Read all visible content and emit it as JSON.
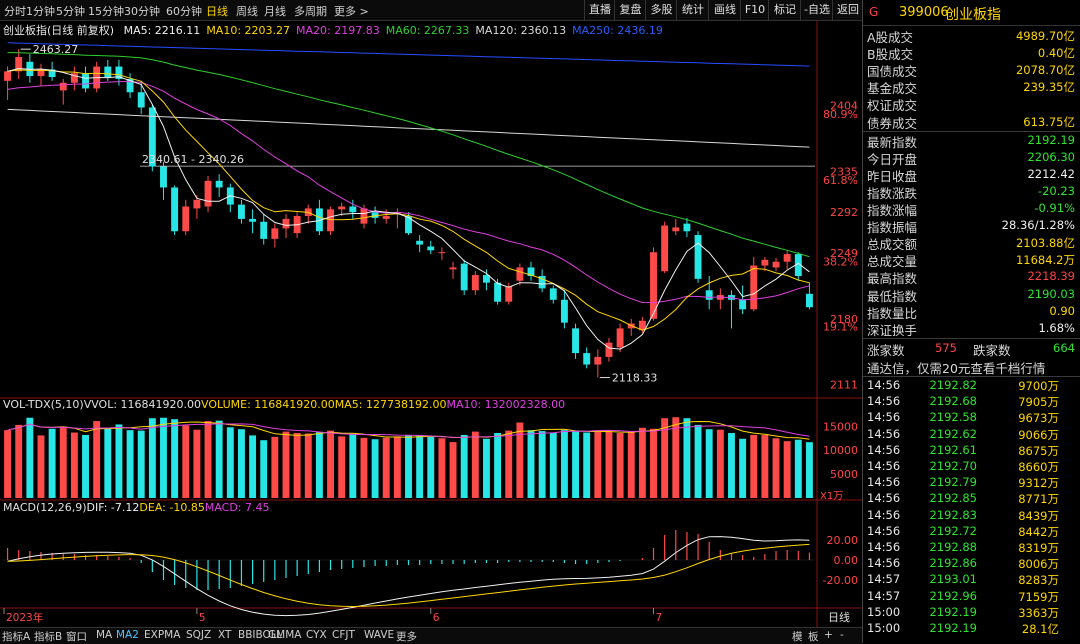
{
  "topbar": {
    "periods": [
      "分时",
      "1分钟",
      "5分钟",
      "15分钟",
      "30分钟",
      "60分钟",
      "日线",
      "周线",
      "月线",
      "多周期",
      "更多 >"
    ],
    "active": "日线",
    "right_buttons": [
      "直播",
      "复盘",
      "多股",
      "统计",
      "画线",
      "F10",
      "标记",
      "-自选",
      "返回"
    ]
  },
  "main_chart": {
    "title": "创业板指(日线 前复权)",
    "legend": [
      {
        "text": "MA5: 2216.11",
        "color": "#f0f0f0"
      },
      {
        "text": "MA10: 2203.27",
        "color": "#ffd700"
      },
      {
        "text": "MA20: 2197.83",
        "color": "#e040e0"
      },
      {
        "text": "MA60: 2267.33",
        "color": "#2ed02e"
      },
      {
        "text": "MA120: 2360.13",
        "color": "#d8d8d8"
      },
      {
        "text": "MA250: 2436.19",
        "color": "#2a5cff"
      }
    ],
    "annotations": {
      "high": "2463.27",
      "mid": "2340.61 - 2340.26",
      "low": "2118.33"
    },
    "price_ticks": [
      "2404",
      "2335",
      "2292",
      "2249",
      "2180",
      "2111"
    ],
    "pct_ticks": [
      "80.9%",
      "61.8%",
      "38.2%",
      "19.1%"
    ]
  },
  "volume_panel": {
    "legend": [
      {
        "text": "VOL-TDX(5,10)",
        "color": "#e0e0e0"
      },
      {
        "text": "VVOL: 116841920.00",
        "color": "#e0e0e0"
      },
      {
        "text": "VOLUME: 116841920.00",
        "color": "#ffd700"
      },
      {
        "text": "MA5: 127738192.00",
        "color": "#ffd700"
      },
      {
        "text": "MA10: 132002328.00",
        "color": "#e040e0"
      }
    ],
    "ticks": [
      "15000",
      "10000",
      "5000"
    ],
    "unit": "X1万"
  },
  "macd_panel": {
    "legend": [
      {
        "text": "MACD(12,26,9)",
        "color": "#e0e0e0"
      },
      {
        "text": "DIF: -7.12",
        "color": "#f0f0f0"
      },
      {
        "text": "DEA: -10.85",
        "color": "#ffd700"
      },
      {
        "text": "MACD: 7.45",
        "color": "#e040e0"
      }
    ],
    "ticks": [
      "20.00",
      "0.00",
      "-20.00"
    ]
  },
  "date_axis": {
    "labels": [
      "2023年",
      "5",
      "6",
      "7"
    ],
    "period_label": "日线"
  },
  "bottombar": {
    "tabs": [
      "指标A",
      "指标B",
      "窗口",
      "MA",
      "MA2",
      "EXPMA",
      "SQJZ",
      "XT",
      "BBIBOLL",
      "GMMA",
      "CYX",
      "CFJT",
      "WAVE",
      "更多"
    ],
    "active": "MA2",
    "right": [
      "模",
      "板",
      "+",
      "-"
    ]
  },
  "quote_panel": {
    "flag": "G",
    "code": "399006",
    "name": "创业板指",
    "rows_top": [
      {
        "label": "A股成交",
        "value": "4989.70亿",
        "color": "yellow"
      },
      {
        "label": "B股成交",
        "value": "0.40亿",
        "color": "yellow"
      },
      {
        "label": "国债成交",
        "value": "2078.70亿",
        "color": "yellow"
      },
      {
        "label": "基金成交",
        "value": "239.35亿",
        "color": "yellow"
      },
      {
        "label": "权证成交",
        "value": "",
        "color": "yellow"
      },
      {
        "label": "债券成交",
        "value": "613.75亿",
        "color": "yellow"
      }
    ],
    "rows_mid": [
      {
        "label": "最新指数",
        "value": "2192.19",
        "color": "green"
      },
      {
        "label": "今日开盘",
        "value": "2206.30",
        "color": "green"
      },
      {
        "label": "昨日收盘",
        "value": "2212.42",
        "color": "white"
      },
      {
        "label": "指数涨跌",
        "value": "-20.23",
        "color": "green"
      },
      {
        "label": "指数涨幅",
        "value": "-0.91%",
        "color": "green"
      },
      {
        "label": "指数振幅",
        "value": "28.36/1.28%",
        "color": "white"
      },
      {
        "label": "总成交额",
        "value": "2103.88亿",
        "color": "yellow"
      },
      {
        "label": "总成交量",
        "value": "11684.2万",
        "color": "yellow"
      },
      {
        "label": "最高指数",
        "value": "2218.39",
        "color": "red"
      },
      {
        "label": "最低指数",
        "value": "2190.03",
        "color": "green"
      },
      {
        "label": "指数量比",
        "value": "0.90",
        "color": "yellow"
      },
      {
        "label": "深证换手",
        "value": "1.68%",
        "color": "white"
      }
    ],
    "advance_label": "涨家数",
    "advance_value": "575",
    "decline_label": "跌家数",
    "decline_value": "664",
    "promo": "通达信，仅需20元查看千档行情",
    "ticks": [
      {
        "time": "14:56",
        "price": "2192.82",
        "vol": "9700万"
      },
      {
        "time": "14:56",
        "price": "2192.68",
        "vol": "7905万"
      },
      {
        "time": "14:56",
        "price": "2192.58",
        "vol": "9673万"
      },
      {
        "time": "14:56",
        "price": "2192.62",
        "vol": "9066万"
      },
      {
        "time": "14:56",
        "price": "2192.61",
        "vol": "8675万"
      },
      {
        "time": "14:56",
        "price": "2192.70",
        "vol": "8660万"
      },
      {
        "time": "14:56",
        "price": "2192.79",
        "vol": "9312万"
      },
      {
        "time": "14:56",
        "price": "2192.85",
        "vol": "8771万"
      },
      {
        "time": "14:56",
        "price": "2192.83",
        "vol": "8439万"
      },
      {
        "time": "14:56",
        "price": "2192.72",
        "vol": "8442万"
      },
      {
        "time": "14:56",
        "price": "2192.88",
        "vol": "8319万"
      },
      {
        "time": "14:56",
        "price": "2192.86",
        "vol": "8006万"
      },
      {
        "time": "14:57",
        "price": "2193.01",
        "vol": "8283万"
      },
      {
        "time": "14:57",
        "price": "2192.96",
        "vol": "7159万"
      },
      {
        "time": "15:00",
        "price": "2192.19",
        "vol": "3363万"
      },
      {
        "time": "15:00",
        "price": "2192.19",
        "vol": "28.1亿"
      }
    ]
  },
  "chart_data": {
    "type": "candlestick",
    "ylim": [
      2100,
      2475
    ],
    "candles": [
      {
        "o": 2430,
        "h": 2445,
        "l": 2410,
        "c": 2440
      },
      {
        "o": 2440,
        "h": 2463.27,
        "l": 2432,
        "c": 2455
      },
      {
        "o": 2450,
        "h": 2458,
        "l": 2428,
        "c": 2435
      },
      {
        "o": 2435,
        "h": 2448,
        "l": 2425,
        "c": 2442
      },
      {
        "o": 2442,
        "h": 2450,
        "l": 2430,
        "c": 2434
      },
      {
        "o": 2420,
        "h": 2432,
        "l": 2405,
        "c": 2428
      },
      {
        "o": 2428,
        "h": 2445,
        "l": 2420,
        "c": 2438
      },
      {
        "o": 2438,
        "h": 2445,
        "l": 2418,
        "c": 2422
      },
      {
        "o": 2422,
        "h": 2450,
        "l": 2418,
        "c": 2445
      },
      {
        "o": 2445,
        "h": 2452,
        "l": 2430,
        "c": 2434
      },
      {
        "o": 2445,
        "h": 2452,
        "l": 2425,
        "c": 2432
      },
      {
        "o": 2432,
        "h": 2438,
        "l": 2412,
        "c": 2418
      },
      {
        "o": 2418,
        "h": 2430,
        "l": 2395,
        "c": 2402
      },
      {
        "o": 2402,
        "h": 2405,
        "l": 2335,
        "c": 2340
      },
      {
        "o": 2340,
        "h": 2345,
        "l": 2305,
        "c": 2318
      },
      {
        "o": 2318,
        "h": 2320,
        "l": 2268,
        "c": 2272
      },
      {
        "o": 2272,
        "h": 2305,
        "l": 2268,
        "c": 2298
      },
      {
        "o": 2296,
        "h": 2310,
        "l": 2285,
        "c": 2305
      },
      {
        "o": 2298,
        "h": 2330,
        "l": 2292,
        "c": 2325
      },
      {
        "o": 2325,
        "h": 2332,
        "l": 2308,
        "c": 2318
      },
      {
        "o": 2318,
        "h": 2322,
        "l": 2292,
        "c": 2300
      },
      {
        "o": 2300,
        "h": 2305,
        "l": 2280,
        "c": 2285
      },
      {
        "o": 2285,
        "h": 2295,
        "l": 2270,
        "c": 2282
      },
      {
        "o": 2282,
        "h": 2290,
        "l": 2258,
        "c": 2264
      },
      {
        "o": 2264,
        "h": 2280,
        "l": 2255,
        "c": 2275
      },
      {
        "o": 2275,
        "h": 2290,
        "l": 2265,
        "c": 2285
      },
      {
        "o": 2270,
        "h": 2292,
        "l": 2265,
        "c": 2288
      },
      {
        "o": 2288,
        "h": 2300,
        "l": 2280,
        "c": 2296
      },
      {
        "o": 2296,
        "h": 2305,
        "l": 2268,
        "c": 2272
      },
      {
        "o": 2272,
        "h": 2298,
        "l": 2268,
        "c": 2295
      },
      {
        "o": 2295,
        "h": 2302,
        "l": 2288,
        "c": 2298
      },
      {
        "o": 2298,
        "h": 2305,
        "l": 2285,
        "c": 2292
      },
      {
        "o": 2280,
        "h": 2300,
        "l": 2275,
        "c": 2296
      },
      {
        "o": 2292,
        "h": 2298,
        "l": 2280,
        "c": 2286
      },
      {
        "o": 2285,
        "h": 2295,
        "l": 2280,
        "c": 2288
      },
      {
        "o": 2290,
        "h": 2296,
        "l": 2275,
        "c": 2292
      },
      {
        "o": 2288,
        "h": 2292,
        "l": 2268,
        "c": 2270
      },
      {
        "o": 2262,
        "h": 2268,
        "l": 2250,
        "c": 2258
      },
      {
        "o": 2256,
        "h": 2262,
        "l": 2248,
        "c": 2252
      },
      {
        "o": 2250,
        "h": 2255,
        "l": 2242,
        "c": 2250
      },
      {
        "o": 2232,
        "h": 2240,
        "l": 2222,
        "c": 2234
      },
      {
        "o": 2238,
        "h": 2242,
        "l": 2205,
        "c": 2210
      },
      {
        "o": 2210,
        "h": 2230,
        "l": 2205,
        "c": 2226
      },
      {
        "o": 2226,
        "h": 2232,
        "l": 2210,
        "c": 2218
      },
      {
        "o": 2218,
        "h": 2222,
        "l": 2195,
        "c": 2198
      },
      {
        "o": 2198,
        "h": 2218,
        "l": 2195,
        "c": 2214
      },
      {
        "o": 2220,
        "h": 2238,
        "l": 2215,
        "c": 2234
      },
      {
        "o": 2234,
        "h": 2240,
        "l": 2220,
        "c": 2225
      },
      {
        "o": 2225,
        "h": 2232,
        "l": 2208,
        "c": 2212
      },
      {
        "o": 2212,
        "h": 2215,
        "l": 2196,
        "c": 2200
      },
      {
        "o": 2200,
        "h": 2210,
        "l": 2170,
        "c": 2176
      },
      {
        "o": 2170,
        "h": 2175,
        "l": 2138,
        "c": 2144
      },
      {
        "o": 2144,
        "h": 2150,
        "l": 2128,
        "c": 2132
      },
      {
        "o": 2132,
        "h": 2148,
        "l": 2118.33,
        "c": 2140
      },
      {
        "o": 2140,
        "h": 2160,
        "l": 2135,
        "c": 2155
      },
      {
        "o": 2150,
        "h": 2175,
        "l": 2145,
        "c": 2170
      },
      {
        "o": 2170,
        "h": 2180,
        "l": 2162,
        "c": 2175
      },
      {
        "o": 2168,
        "h": 2182,
        "l": 2165,
        "c": 2178
      },
      {
        "o": 2180,
        "h": 2255,
        "l": 2178,
        "c": 2250
      },
      {
        "o": 2230,
        "h": 2282,
        "l": 2228,
        "c": 2278
      },
      {
        "o": 2272,
        "h": 2285,
        "l": 2268,
        "c": 2276
      },
      {
        "o": 2280,
        "h": 2286,
        "l": 2266,
        "c": 2272
      },
      {
        "o": 2268,
        "h": 2272,
        "l": 2218,
        "c": 2222
      },
      {
        "o": 2210,
        "h": 2225,
        "l": 2190,
        "c": 2200
      },
      {
        "o": 2200,
        "h": 2212,
        "l": 2190,
        "c": 2205
      },
      {
        "o": 2205,
        "h": 2210,
        "l": 2170,
        "c": 2200
      },
      {
        "o": 2200,
        "h": 2215,
        "l": 2185,
        "c": 2190
      },
      {
        "o": 2190,
        "h": 2245,
        "l": 2188,
        "c": 2236
      },
      {
        "o": 2236,
        "h": 2245,
        "l": 2230,
        "c": 2242
      },
      {
        "o": 2234,
        "h": 2244,
        "l": 2230,
        "c": 2240
      },
      {
        "o": 2240,
        "h": 2252,
        "l": 2232,
        "c": 2248
      },
      {
        "o": 2248,
        "h": 2250,
        "l": 2220,
        "c": 2225
      },
      {
        "o": 2206.3,
        "h": 2218.39,
        "l": 2190.03,
        "c": 2192.19
      }
    ],
    "volume_ylim": [
      0,
      18000
    ],
    "volumes": [
      14200,
      15300,
      16800,
      13100,
      14500,
      14900,
      13700,
      13200,
      16100,
      14700,
      15400,
      14200,
      14100,
      16700,
      16800,
      16500,
      15200,
      14300,
      16100,
      16200,
      14800,
      14400,
      13100,
      12100,
      12800,
      13900,
      13600,
      13500,
      13800,
      14100,
      12900,
      13400,
      12600,
      12300,
      12600,
      12900,
      13100,
      13200,
      12800,
      12500,
      11700,
      13200,
      13900,
      12400,
      13600,
      14100,
      15800,
      14200,
      14000,
      13700,
      14200,
      14100,
      13700,
      13800,
      13800,
      13600,
      14000,
      14700,
      14500,
      16700,
      16900,
      16700,
      15300,
      14400,
      14300,
      13600,
      12400,
      13200,
      13200,
      12500,
      11900,
      12200,
      11684
    ],
    "macd_ylim": [
      -45,
      45
    ],
    "macd": [
      12,
      10,
      9,
      8,
      7,
      6,
      6,
      5,
      5,
      4,
      3,
      2,
      -3,
      -12,
      -20,
      -25,
      -28,
      -30,
      -30,
      -29,
      -28,
      -26,
      -24,
      -22,
      -20,
      -18,
      -16,
      -14,
      -12,
      -10,
      -9,
      -8,
      -7,
      -6,
      -6,
      -5,
      -5,
      -5,
      -4,
      -4,
      -4,
      -4,
      -3,
      -3,
      -3,
      -2,
      -2,
      -2,
      -2,
      -2,
      -3,
      -4,
      -4,
      -3,
      -2,
      -1,
      0,
      2,
      12,
      25,
      30,
      28,
      26,
      18,
      10,
      7,
      5,
      3,
      6,
      9,
      10,
      9,
      7.45
    ],
    "dates": [
      "2023年",
      "5",
      "6",
      "7"
    ]
  }
}
